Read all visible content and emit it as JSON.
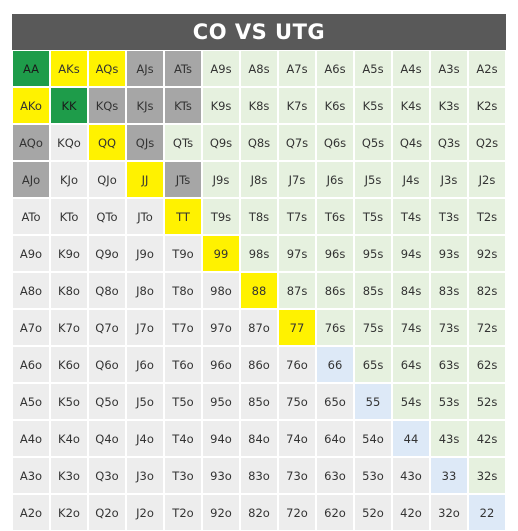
{
  "title": "CO VS UTG",
  "colors": {
    "green": "#1e9c4a",
    "yellow": "#fff200",
    "gray": "#a6a6a6",
    "lightblue": "#dde9f7",
    "lightgreen": "#e6f1df",
    "lightgray": "#ededed"
  },
  "grid": [
    [
      {
        "label": "AA",
        "c": "green"
      },
      {
        "label": "AKs",
        "c": "yellow"
      },
      {
        "label": "AQs",
        "c": "yellow"
      },
      {
        "label": "AJs",
        "c": "gray"
      },
      {
        "label": "ATs",
        "c": "gray"
      },
      {
        "label": "A9s",
        "c": "lightgreen"
      },
      {
        "label": "A8s",
        "c": "lightgreen"
      },
      {
        "label": "A7s",
        "c": "lightgreen"
      },
      {
        "label": "A6s",
        "c": "lightgreen"
      },
      {
        "label": "A5s",
        "c": "lightgreen"
      },
      {
        "label": "A4s",
        "c": "lightgreen"
      },
      {
        "label": "A3s",
        "c": "lightgreen"
      },
      {
        "label": "A2s",
        "c": "lightgreen"
      }
    ],
    [
      {
        "label": "AKo",
        "c": "yellow"
      },
      {
        "label": "KK",
        "c": "green"
      },
      {
        "label": "KQs",
        "c": "gray"
      },
      {
        "label": "KJs",
        "c": "gray"
      },
      {
        "label": "KTs",
        "c": "gray"
      },
      {
        "label": "K9s",
        "c": "lightgreen"
      },
      {
        "label": "K8s",
        "c": "lightgreen"
      },
      {
        "label": "K7s",
        "c": "lightgreen"
      },
      {
        "label": "K6s",
        "c": "lightgreen"
      },
      {
        "label": "K5s",
        "c": "lightgreen"
      },
      {
        "label": "K4s",
        "c": "lightgreen"
      },
      {
        "label": "K3s",
        "c": "lightgreen"
      },
      {
        "label": "K2s",
        "c": "lightgreen"
      }
    ],
    [
      {
        "label": "AQo",
        "c": "gray"
      },
      {
        "label": "KQo",
        "c": "lightgray"
      },
      {
        "label": "QQ",
        "c": "yellow"
      },
      {
        "label": "QJs",
        "c": "gray"
      },
      {
        "label": "QTs",
        "c": "lightgreen"
      },
      {
        "label": "Q9s",
        "c": "lightgreen"
      },
      {
        "label": "Q8s",
        "c": "lightgreen"
      },
      {
        "label": "Q7s",
        "c": "lightgreen"
      },
      {
        "label": "Q6s",
        "c": "lightgreen"
      },
      {
        "label": "Q5s",
        "c": "lightgreen"
      },
      {
        "label": "Q4s",
        "c": "lightgreen"
      },
      {
        "label": "Q3s",
        "c": "lightgreen"
      },
      {
        "label": "Q2s",
        "c": "lightgreen"
      }
    ],
    [
      {
        "label": "AJo",
        "c": "gray"
      },
      {
        "label": "KJo",
        "c": "lightgray"
      },
      {
        "label": "QJo",
        "c": "lightgray"
      },
      {
        "label": "JJ",
        "c": "yellow"
      },
      {
        "label": "JTs",
        "c": "gray"
      },
      {
        "label": "J9s",
        "c": "lightgreen"
      },
      {
        "label": "J8s",
        "c": "lightgreen"
      },
      {
        "label": "J7s",
        "c": "lightgreen"
      },
      {
        "label": "J6s",
        "c": "lightgreen"
      },
      {
        "label": "J5s",
        "c": "lightgreen"
      },
      {
        "label": "J4s",
        "c": "lightgreen"
      },
      {
        "label": "J3s",
        "c": "lightgreen"
      },
      {
        "label": "J2s",
        "c": "lightgreen"
      }
    ],
    [
      {
        "label": "ATo",
        "c": "lightgray"
      },
      {
        "label": "KTo",
        "c": "lightgray"
      },
      {
        "label": "QTo",
        "c": "lightgray"
      },
      {
        "label": "JTo",
        "c": "lightgray"
      },
      {
        "label": "TT",
        "c": "yellow"
      },
      {
        "label": "T9s",
        "c": "lightgreen"
      },
      {
        "label": "T8s",
        "c": "lightgreen"
      },
      {
        "label": "T7s",
        "c": "lightgreen"
      },
      {
        "label": "T6s",
        "c": "lightgreen"
      },
      {
        "label": "T5s",
        "c": "lightgreen"
      },
      {
        "label": "T4s",
        "c": "lightgreen"
      },
      {
        "label": "T3s",
        "c": "lightgreen"
      },
      {
        "label": "T2s",
        "c": "lightgreen"
      }
    ],
    [
      {
        "label": "A9o",
        "c": "lightgray"
      },
      {
        "label": "K9o",
        "c": "lightgray"
      },
      {
        "label": "Q9o",
        "c": "lightgray"
      },
      {
        "label": "J9o",
        "c": "lightgray"
      },
      {
        "label": "T9o",
        "c": "lightgray"
      },
      {
        "label": "99",
        "c": "yellow"
      },
      {
        "label": "98s",
        "c": "lightgreen"
      },
      {
        "label": "97s",
        "c": "lightgreen"
      },
      {
        "label": "96s",
        "c": "lightgreen"
      },
      {
        "label": "95s",
        "c": "lightgreen"
      },
      {
        "label": "94s",
        "c": "lightgreen"
      },
      {
        "label": "93s",
        "c": "lightgreen"
      },
      {
        "label": "92s",
        "c": "lightgreen"
      }
    ],
    [
      {
        "label": "A8o",
        "c": "lightgray"
      },
      {
        "label": "K8o",
        "c": "lightgray"
      },
      {
        "label": "Q8o",
        "c": "lightgray"
      },
      {
        "label": "J8o",
        "c": "lightgray"
      },
      {
        "label": "T8o",
        "c": "lightgray"
      },
      {
        "label": "98o",
        "c": "lightgray"
      },
      {
        "label": "88",
        "c": "yellow"
      },
      {
        "label": "87s",
        "c": "lightgreen"
      },
      {
        "label": "86s",
        "c": "lightgreen"
      },
      {
        "label": "85s",
        "c": "lightgreen"
      },
      {
        "label": "84s",
        "c": "lightgreen"
      },
      {
        "label": "83s",
        "c": "lightgreen"
      },
      {
        "label": "82s",
        "c": "lightgreen"
      }
    ],
    [
      {
        "label": "A7o",
        "c": "lightgray"
      },
      {
        "label": "K7o",
        "c": "lightgray"
      },
      {
        "label": "Q7o",
        "c": "lightgray"
      },
      {
        "label": "J7o",
        "c": "lightgray"
      },
      {
        "label": "T7o",
        "c": "lightgray"
      },
      {
        "label": "97o",
        "c": "lightgray"
      },
      {
        "label": "87o",
        "c": "lightgray"
      },
      {
        "label": "77",
        "c": "yellow"
      },
      {
        "label": "76s",
        "c": "lightgreen"
      },
      {
        "label": "75s",
        "c": "lightgreen"
      },
      {
        "label": "74s",
        "c": "lightgreen"
      },
      {
        "label": "73s",
        "c": "lightgreen"
      },
      {
        "label": "72s",
        "c": "lightgreen"
      }
    ],
    [
      {
        "label": "A6o",
        "c": "lightgray"
      },
      {
        "label": "K6o",
        "c": "lightgray"
      },
      {
        "label": "Q6o",
        "c": "lightgray"
      },
      {
        "label": "J6o",
        "c": "lightgray"
      },
      {
        "label": "T6o",
        "c": "lightgray"
      },
      {
        "label": "96o",
        "c": "lightgray"
      },
      {
        "label": "86o",
        "c": "lightgray"
      },
      {
        "label": "76o",
        "c": "lightgray"
      },
      {
        "label": "66",
        "c": "lightblue"
      },
      {
        "label": "65s",
        "c": "lightgreen"
      },
      {
        "label": "64s",
        "c": "lightgreen"
      },
      {
        "label": "63s",
        "c": "lightgreen"
      },
      {
        "label": "62s",
        "c": "lightgreen"
      }
    ],
    [
      {
        "label": "A5o",
        "c": "lightgray"
      },
      {
        "label": "K5o",
        "c": "lightgray"
      },
      {
        "label": "Q5o",
        "c": "lightgray"
      },
      {
        "label": "J5o",
        "c": "lightgray"
      },
      {
        "label": "T5o",
        "c": "lightgray"
      },
      {
        "label": "95o",
        "c": "lightgray"
      },
      {
        "label": "85o",
        "c": "lightgray"
      },
      {
        "label": "75o",
        "c": "lightgray"
      },
      {
        "label": "65o",
        "c": "lightgray"
      },
      {
        "label": "55",
        "c": "lightblue"
      },
      {
        "label": "54s",
        "c": "lightgreen"
      },
      {
        "label": "53s",
        "c": "lightgreen"
      },
      {
        "label": "52s",
        "c": "lightgreen"
      }
    ],
    [
      {
        "label": "A4o",
        "c": "lightgray"
      },
      {
        "label": "K4o",
        "c": "lightgray"
      },
      {
        "label": "Q4o",
        "c": "lightgray"
      },
      {
        "label": "J4o",
        "c": "lightgray"
      },
      {
        "label": "T4o",
        "c": "lightgray"
      },
      {
        "label": "94o",
        "c": "lightgray"
      },
      {
        "label": "84o",
        "c": "lightgray"
      },
      {
        "label": "74o",
        "c": "lightgray"
      },
      {
        "label": "64o",
        "c": "lightgray"
      },
      {
        "label": "54o",
        "c": "lightgray"
      },
      {
        "label": "44",
        "c": "lightblue"
      },
      {
        "label": "43s",
        "c": "lightgreen"
      },
      {
        "label": "42s",
        "c": "lightgreen"
      }
    ],
    [
      {
        "label": "A3o",
        "c": "lightgray"
      },
      {
        "label": "K3o",
        "c": "lightgray"
      },
      {
        "label": "Q3o",
        "c": "lightgray"
      },
      {
        "label": "J3o",
        "c": "lightgray"
      },
      {
        "label": "T3o",
        "c": "lightgray"
      },
      {
        "label": "93o",
        "c": "lightgray"
      },
      {
        "label": "83o",
        "c": "lightgray"
      },
      {
        "label": "73o",
        "c": "lightgray"
      },
      {
        "label": "63o",
        "c": "lightgray"
      },
      {
        "label": "53o",
        "c": "lightgray"
      },
      {
        "label": "43o",
        "c": "lightgray"
      },
      {
        "label": "33",
        "c": "lightblue"
      },
      {
        "label": "32s",
        "c": "lightgreen"
      }
    ],
    [
      {
        "label": "A2o",
        "c": "lightgray"
      },
      {
        "label": "K2o",
        "c": "lightgray"
      },
      {
        "label": "Q2o",
        "c": "lightgray"
      },
      {
        "label": "J2o",
        "c": "lightgray"
      },
      {
        "label": "T2o",
        "c": "lightgray"
      },
      {
        "label": "92o",
        "c": "lightgray"
      },
      {
        "label": "82o",
        "c": "lightgray"
      },
      {
        "label": "72o",
        "c": "lightgray"
      },
      {
        "label": "62o",
        "c": "lightgray"
      },
      {
        "label": "52o",
        "c": "lightgray"
      },
      {
        "label": "42o",
        "c": "lightgray"
      },
      {
        "label": "32o",
        "c": "lightgray"
      },
      {
        "label": "22",
        "c": "lightblue"
      }
    ]
  ]
}
